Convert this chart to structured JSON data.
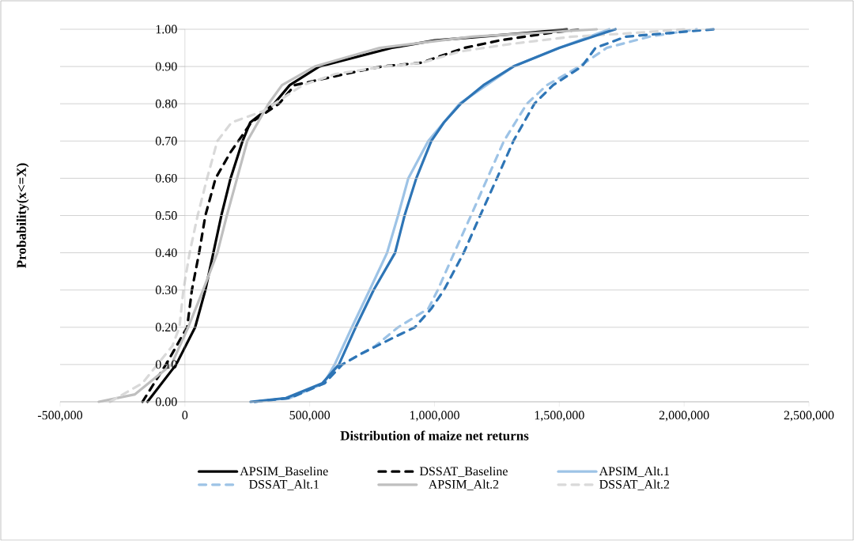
{
  "chart_data": {
    "type": "line",
    "xlabel": "Distribution  of maize net returns",
    "ylabel": "Probability(x<=X)",
    "xlim": [
      -500000,
      2500000
    ],
    "ylim": [
      0,
      1
    ],
    "xticks": [
      {
        "value": -500000,
        "label": "-500,000"
      },
      0,
      {
        "value": 500000,
        "label": "500,000"
      },
      {
        "value": 1000000,
        "label": "1,000,000"
      },
      {
        "value": 1500000,
        "label": "1,500,000"
      },
      {
        "value": 2000000,
        "label": "2,000,000"
      },
      {
        "value": 2500000,
        "label": "2,500,000"
      }
    ],
    "yticks": [
      {
        "value": 0,
        "label": "0.00"
      },
      {
        "value": 0.1,
        "label": "0.10"
      },
      {
        "value": 0.2,
        "label": "0.20"
      },
      {
        "value": 0.3,
        "label": "0.30"
      },
      {
        "value": 0.4,
        "label": "0.40"
      },
      {
        "value": 0.5,
        "label": "0.50"
      },
      {
        "value": 0.6,
        "label": "0.60"
      },
      {
        "value": 0.7,
        "label": "0.70"
      },
      {
        "value": 0.8,
        "label": "0.80"
      },
      {
        "value": 0.9,
        "label": "0.90"
      },
      {
        "value": 1,
        "label": "1.00"
      }
    ],
    "grid": "y",
    "legend": "bottom",
    "marker": "none",
    "series": [
      {
        "name": "APSIM_Baseline",
        "color": "#000000",
        "line_style": "solid",
        "x": [
          -150000,
          -35000,
          41000,
          82000,
          114000,
          146000,
          183000,
          231000,
          262000,
          357000,
          420000,
          538000,
          829000,
          1000000,
          1370000,
          1530000
        ],
        "values": [
          0,
          0.1,
          0.2,
          0.3,
          0.4,
          0.5,
          0.6,
          0.7,
          0.75,
          0.8,
          0.85,
          0.9,
          0.95,
          0.97,
          0.99,
          1
        ]
      },
      {
        "name": "DSSAT_Baseline",
        "color": "#000000",
        "line_style": "dashed",
        "x": [
          -170000,
          -76000,
          9000,
          28000,
          57000,
          82000,
          123000,
          183000,
          266000,
          377000,
          440000,
          642000,
          788000,
          946000,
          1120000,
          1260000,
          1460000,
          1590000
        ],
        "values": [
          0,
          0.1,
          0.2,
          0.3,
          0.4,
          0.5,
          0.6,
          0.67,
          0.75,
          0.8,
          0.85,
          0.88,
          0.9,
          0.91,
          0.95,
          0.97,
          0.99,
          1
        ]
      },
      {
        "name": "APSIM_Alt.1",
        "color": "#9dc3e6",
        "line_style": "solid",
        "x": [
          280000,
          420000,
          557000,
          600000,
          669000,
          740000,
          810000,
          854000,
          895000,
          975000,
          1100000,
          1316000,
          1500000,
          1700000
        ],
        "values": [
          0,
          0.01,
          0.05,
          0.1,
          0.2,
          0.3,
          0.4,
          0.5,
          0.6,
          0.7,
          0.8,
          0.9,
          0.95,
          1
        ]
      },
      {
        "name": "DSSAT_Alt.1",
        "color": "#9dc3e6",
        "line_style": "dashed",
        "x": [
          280000,
          420000,
          560000,
          630000,
          763000,
          854000,
          975000,
          1013000,
          1079000,
          1146000,
          1212000,
          1278000,
          1370000,
          1450000,
          1580000,
          1690000,
          1860000,
          2050000
        ],
        "values": [
          0,
          0.01,
          0.05,
          0.1,
          0.15,
          0.2,
          0.25,
          0.3,
          0.4,
          0.5,
          0.6,
          0.7,
          0.8,
          0.85,
          0.9,
          0.95,
          0.98,
          1
        ]
      },
      {
        "name": "APSIM_Alt.2",
        "color": "#bfbfbf",
        "line_style": "solid",
        "x": [
          -345000,
          -200000,
          -54000,
          13000,
          73000,
          130000,
          168000,
          209000,
          250000,
          335000,
          389000,
          520000,
          780000,
          1150000,
          1650000
        ],
        "values": [
          0,
          0.02,
          0.1,
          0.2,
          0.3,
          0.4,
          0.5,
          0.6,
          0.7,
          0.8,
          0.85,
          0.9,
          0.95,
          0.98,
          1
        ]
      },
      {
        "name": "DSSAT_Alt.2",
        "color": "#d9d9d9",
        "line_style": "dashed",
        "x": [
          -300000,
          -170000,
          -110000,
          -50000,
          -22000,
          -6000,
          19000,
          51000,
          89000,
          130000,
          187000,
          313000,
          472000,
          604000,
          800000,
          950000,
          1100000,
          1300000,
          1550000,
          1800000,
          2000000
        ],
        "values": [
          0,
          0.05,
          0.1,
          0.15,
          0.2,
          0.3,
          0.4,
          0.5,
          0.6,
          0.7,
          0.75,
          0.78,
          0.85,
          0.88,
          0.9,
          0.91,
          0.94,
          0.96,
          0.98,
          0.99,
          1
        ]
      },
      {
        "color": "#2e75b6",
        "line_style": "solid",
        "x": [
          263000,
          405000,
          551000,
          617000,
          684000,
          756000,
          842000,
          880000,
          927000,
          987000,
          1038000,
          1105000,
          1196000,
          1316000,
          1500000,
          1633000,
          1725000
        ],
        "values": [
          0,
          0.01,
          0.05,
          0.1,
          0.2,
          0.3,
          0.4,
          0.5,
          0.6,
          0.7,
          0.75,
          0.8,
          0.85,
          0.9,
          0.95,
          0.98,
          1
        ]
      },
      {
        "color": "#2e75b6",
        "line_style": "dashed",
        "x": [
          280000,
          420000,
          560000,
          630000,
          709000,
          829000,
          921000,
          987000,
          1038000,
          1117000,
          1183000,
          1250000,
          1316000,
          1400000,
          1475000,
          1590000,
          1645000,
          1766000,
          2120000
        ],
        "values": [
          0,
          0.01,
          0.05,
          0.1,
          0.13,
          0.17,
          0.2,
          0.25,
          0.3,
          0.4,
          0.5,
          0.6,
          0.7,
          0.8,
          0.85,
          0.9,
          0.95,
          0.98,
          1
        ]
      }
    ]
  }
}
